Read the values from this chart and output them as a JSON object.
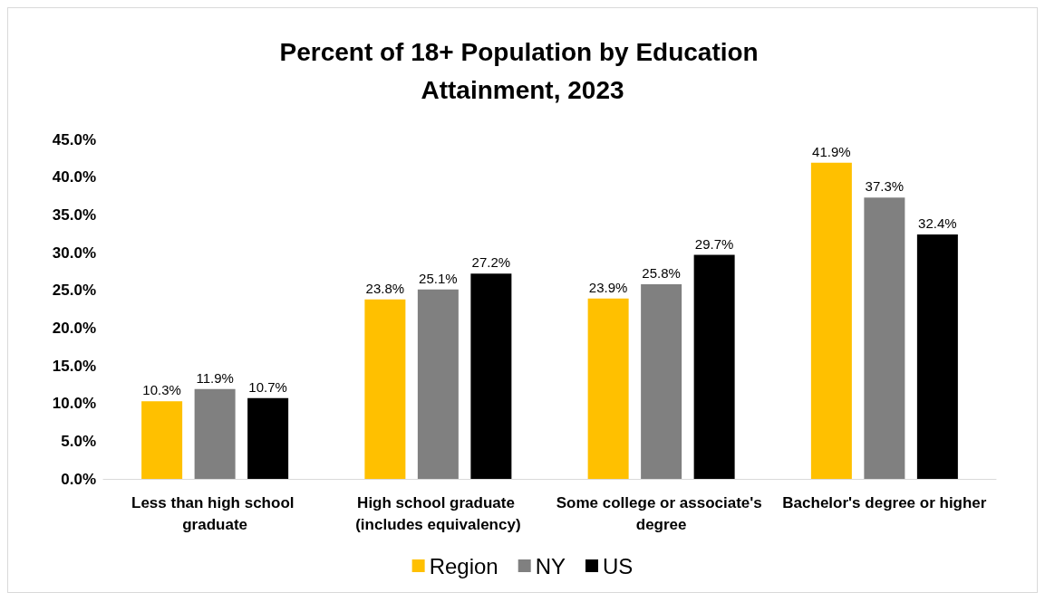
{
  "chart_data": {
    "type": "bar",
    "title": "Percent of 18+ Population by Education Attainment, 2023",
    "categories": [
      "Less than high school graduate",
      "High school graduate (includes equivalency)",
      "Some college or associate's degree",
      "Bachelor's degree or higher"
    ],
    "series": [
      {
        "name": "Region",
        "color": "#ffc000",
        "values": [
          10.3,
          23.8,
          23.9,
          41.9
        ],
        "value_labels": [
          "10.3%",
          "23.8%",
          "23.9%",
          "41.9%"
        ]
      },
      {
        "name": "NY",
        "color": "#808080",
        "values": [
          11.9,
          25.1,
          25.8,
          37.3
        ],
        "value_labels": [
          "11.9%",
          "25.1%",
          "25.8%",
          "37.3%"
        ]
      },
      {
        "name": "US",
        "color": "#000000",
        "values": [
          10.7,
          27.2,
          29.7,
          32.4
        ],
        "value_labels": [
          "10.7%",
          "27.2%",
          "29.7%",
          "32.4%"
        ]
      }
    ],
    "ylim": [
      0,
      45
    ],
    "yticks": [
      {
        "value": 0,
        "label": "0.0%"
      },
      {
        "value": 5,
        "label": "5.0%"
      },
      {
        "value": 10,
        "label": "10.0%"
      },
      {
        "value": 15,
        "label": "15.0%"
      },
      {
        "value": 20,
        "label": "20.0%"
      },
      {
        "value": 25,
        "label": "25.0%"
      },
      {
        "value": 30,
        "label": "30.0%"
      },
      {
        "value": 35,
        "label": "35.0%"
      },
      {
        "value": 40,
        "label": "40.0%"
      },
      {
        "value": 45,
        "label": "45.0%"
      }
    ],
    "grid": false,
    "legend": "bottom"
  }
}
